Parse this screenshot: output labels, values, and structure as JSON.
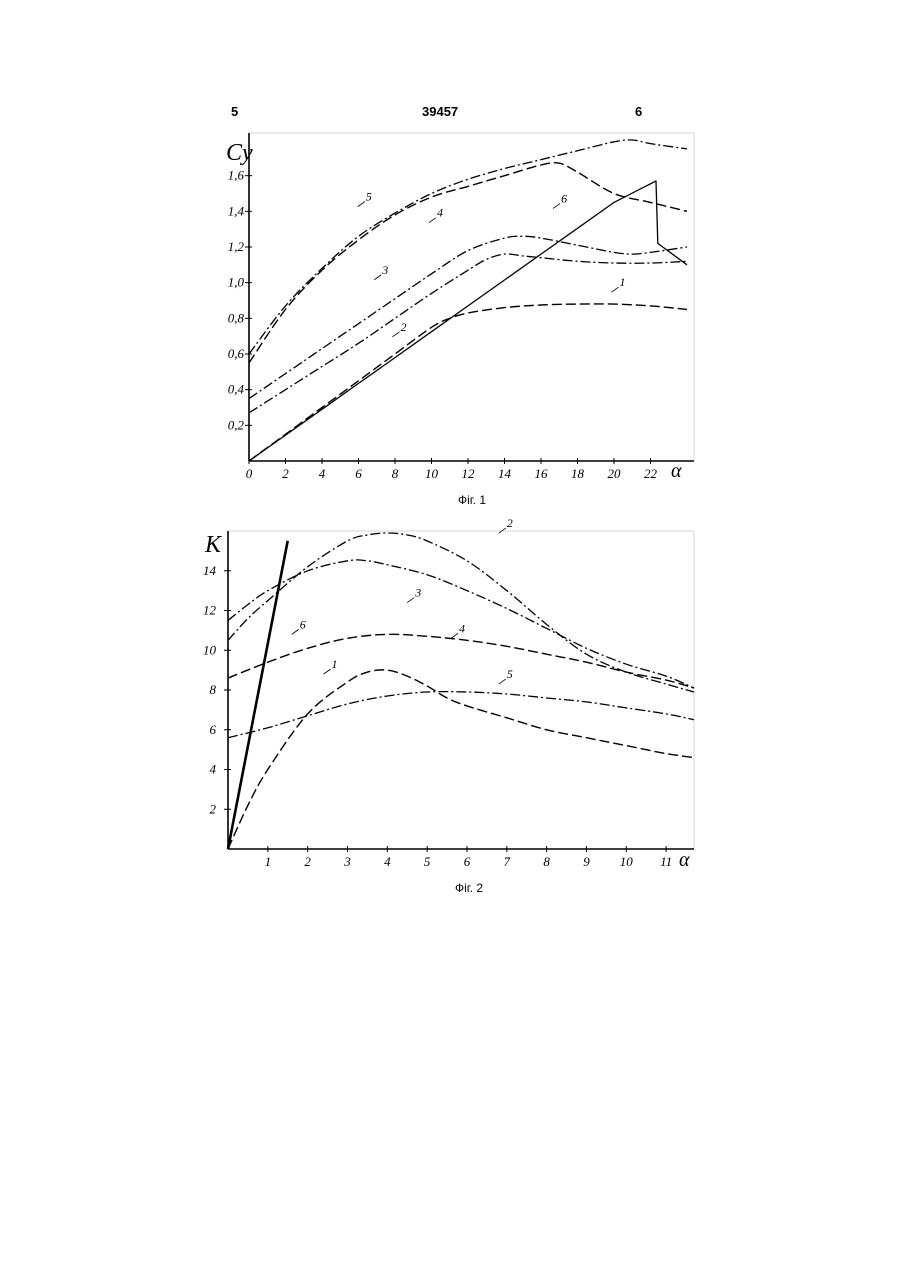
{
  "page_header": {
    "left": "5",
    "center": "39457",
    "right": "6"
  },
  "chart_data": [
    {
      "type": "line",
      "caption": "Фіг. 1",
      "xlabel": "α",
      "ylabel": "Cy",
      "xlim": [
        0,
        24
      ],
      "ylim": [
        0,
        1.8
      ],
      "x_ticks": [
        0,
        2,
        4,
        6,
        8,
        10,
        12,
        14,
        16,
        18,
        20,
        22
      ],
      "x_tick_labels": [
        "0",
        "2",
        "4",
        "6",
        "8",
        "10",
        "12",
        "14",
        "16",
        "18",
        "20",
        "22"
      ],
      "y_ticks": [
        0.2,
        0.4,
        0.6,
        0.8,
        1.0,
        1.2,
        1.4,
        1.6
      ],
      "y_tick_labels": [
        "0,2",
        "0,4",
        "0,6",
        "0,8",
        "1,0",
        "1,2",
        "1,4",
        "1,6"
      ],
      "grid": false,
      "series": [
        {
          "name": "1",
          "dash": "long-dash",
          "label_at": [
            20.3,
            0.98
          ],
          "x": [
            0,
            2,
            4,
            6,
            8,
            10,
            11,
            12,
            14,
            16,
            18,
            20,
            22,
            24
          ],
          "y": [
            0,
            0.15,
            0.3,
            0.45,
            0.6,
            0.75,
            0.8,
            0.83,
            0.86,
            0.875,
            0.88,
            0.88,
            0.87,
            0.85
          ]
        },
        {
          "name": "2",
          "dash": "dash-dot",
          "label_at": [
            8.3,
            0.73
          ],
          "x": [
            0,
            2,
            4,
            6,
            8,
            10,
            12,
            13,
            14,
            15,
            16,
            18,
            20,
            22,
            24
          ],
          "y": [
            0.27,
            0.4,
            0.53,
            0.66,
            0.8,
            0.94,
            1.07,
            1.13,
            1.16,
            1.15,
            1.14,
            1.12,
            1.11,
            1.11,
            1.12
          ]
        },
        {
          "name": "3",
          "dash": "dash-dot",
          "label_at": [
            7.3,
            1.05
          ],
          "x": [
            0,
            2,
            4,
            6,
            8,
            10,
            12,
            14,
            15,
            16,
            18,
            20,
            21,
            22,
            24
          ],
          "y": [
            0.35,
            0.49,
            0.63,
            0.77,
            0.91,
            1.05,
            1.18,
            1.25,
            1.26,
            1.25,
            1.21,
            1.17,
            1.16,
            1.17,
            1.2
          ]
        },
        {
          "name": "4",
          "dash": "long-dash",
          "label_at": [
            10.3,
            1.37
          ],
          "x": [
            0,
            2,
            4,
            6,
            8,
            10,
            12,
            14,
            16,
            17,
            18,
            20,
            22,
            24
          ],
          "y": [
            0.55,
            0.85,
            1.07,
            1.24,
            1.38,
            1.48,
            1.54,
            1.6,
            1.66,
            1.67,
            1.62,
            1.5,
            1.45,
            1.4
          ]
        },
        {
          "name": "5",
          "dash": "dash-dot",
          "label_at": [
            6.4,
            1.46
          ],
          "x": [
            0,
            2,
            4,
            6,
            8,
            10,
            12,
            14,
            16,
            18,
            20,
            21,
            22,
            24
          ],
          "y": [
            0.6,
            0.87,
            1.08,
            1.26,
            1.39,
            1.5,
            1.58,
            1.64,
            1.69,
            1.74,
            1.79,
            1.8,
            1.78,
            1.75
          ]
        },
        {
          "name": "6",
          "dash": "solid",
          "label_at": [
            17.1,
            1.45
          ],
          "x": [
            0,
            2,
            4,
            6,
            8,
            10,
            12,
            14,
            16,
            18,
            20,
            22.3,
            22.4,
            24
          ],
          "y": [
            0,
            0.145,
            0.29,
            0.435,
            0.58,
            0.725,
            0.87,
            1.015,
            1.16,
            1.305,
            1.45,
            1.57,
            1.22,
            1.1
          ]
        }
      ]
    },
    {
      "type": "line",
      "caption": "Фіг. 2",
      "xlabel": "α",
      "ylabel": "K",
      "xlim": [
        0,
        11.7
      ],
      "ylim": [
        0,
        16
      ],
      "x_ticks": [
        1,
        2,
        3,
        4,
        5,
        6,
        7,
        8,
        9,
        10,
        11
      ],
      "x_tick_labels": [
        "1",
        "2",
        "3",
        "4",
        "5",
        "6",
        "7",
        "8",
        "9",
        "10",
        "11"
      ],
      "y_ticks": [
        2,
        4,
        6,
        8,
        10,
        12,
        14
      ],
      "y_tick_labels": [
        "2",
        "4",
        "6",
        "8",
        "10",
        "12",
        "14"
      ],
      "grid": false,
      "series": [
        {
          "name": "1",
          "dash": "long-dash",
          "label_at": [
            2.6,
            9.1
          ],
          "x": [
            0,
            0.5,
            1,
            2,
            3,
            3.5,
            4,
            4.5,
            5,
            5.5,
            6,
            7,
            8,
            9,
            10,
            11,
            11.7
          ],
          "y": [
            0,
            2.2,
            4,
            6.8,
            8.4,
            8.9,
            9,
            8.7,
            8.2,
            7.6,
            7.2,
            6.6,
            6,
            5.6,
            5.2,
            4.8,
            4.6
          ]
        },
        {
          "name": "2",
          "dash": "dash-dot",
          "label_at": [
            7,
            16.2
          ],
          "x": [
            0,
            0.5,
            1,
            2,
            3,
            3.5,
            4,
            4.5,
            5,
            6,
            7,
            8,
            9,
            10,
            11,
            11.7
          ],
          "y": [
            10.5,
            11.6,
            12.5,
            14.2,
            15.5,
            15.8,
            15.9,
            15.8,
            15.5,
            14.5,
            13,
            11.3,
            9.8,
            8.9,
            8.3,
            7.9
          ]
        },
        {
          "name": "3",
          "dash": "dash-dot",
          "label_at": [
            4.7,
            12.7
          ],
          "x": [
            0,
            0.5,
            1,
            2,
            3,
            3.5,
            4,
            5,
            6,
            7,
            8,
            9,
            10,
            11,
            11.7
          ],
          "y": [
            11.5,
            12.3,
            13,
            14,
            14.5,
            14.5,
            14.3,
            13.8,
            13,
            12.1,
            11.1,
            10.1,
            9.3,
            8.7,
            8.1
          ]
        },
        {
          "name": "4",
          "dash": "long-dash",
          "label_at": [
            5.8,
            10.9
          ],
          "x": [
            0,
            1,
            2,
            3,
            4,
            5,
            6,
            7,
            8,
            9,
            10,
            11,
            11.7
          ],
          "y": [
            8.6,
            9.4,
            10.1,
            10.6,
            10.8,
            10.7,
            10.5,
            10.2,
            9.8,
            9.4,
            8.9,
            8.5,
            8.1
          ]
        },
        {
          "name": "5",
          "dash": "dash-dot",
          "label_at": [
            7,
            8.6
          ],
          "x": [
            0,
            1,
            2,
            3,
            4,
            5,
            6,
            7,
            8,
            9,
            10,
            11,
            11.7
          ],
          "y": [
            5.6,
            6.1,
            6.7,
            7.3,
            7.7,
            7.9,
            7.9,
            7.8,
            7.6,
            7.4,
            7.1,
            6.8,
            6.5
          ]
        },
        {
          "name": "6",
          "dash": "solid-bold",
          "label_at": [
            1.8,
            11.1
          ],
          "x": [
            0,
            1.5
          ],
          "y": [
            0,
            15.5
          ]
        }
      ]
    }
  ]
}
